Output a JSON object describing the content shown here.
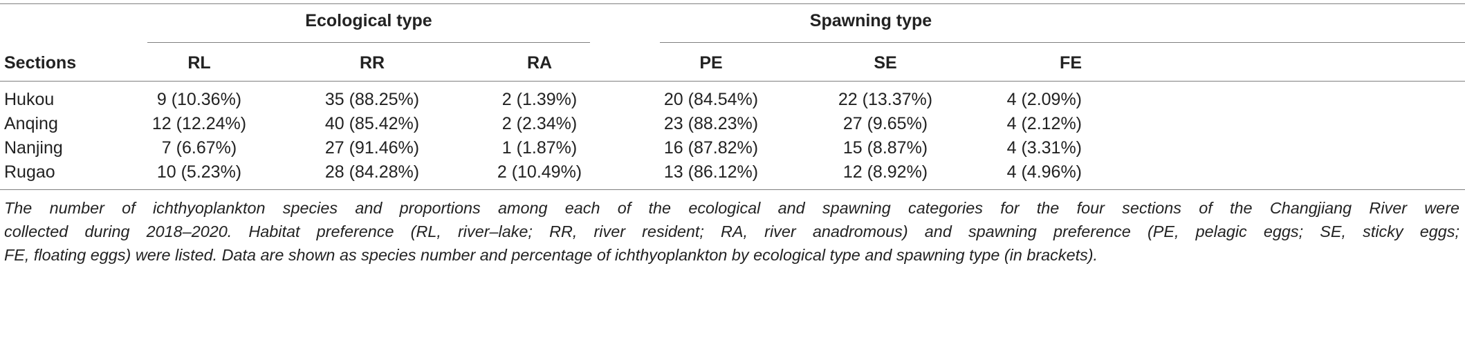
{
  "table": {
    "group_headers": {
      "ecological": "Ecological type",
      "spawning": "Spawning type"
    },
    "columns": [
      "Sections",
      "RL",
      "RR",
      "RA",
      "PE",
      "SE",
      "FE"
    ],
    "rows": [
      [
        "Hukou",
        "9 (10.36%)",
        "35 (88.25%)",
        "2 (1.39%)",
        "20 (84.54%)",
        "22 (13.37%)",
        "4 (2.09%)"
      ],
      [
        "Anqing",
        "12 (12.24%)",
        "40 (85.42%)",
        "2 (2.34%)",
        "23 (88.23%)",
        "27 (9.65%)",
        "4 (2.12%)"
      ],
      [
        "Nanjing",
        "7 (6.67%)",
        "27 (91.46%)",
        "1 (1.87%)",
        "16 (87.82%)",
        "15 (8.87%)",
        "4 (3.31%)"
      ],
      [
        "Rugao",
        "10 (5.23%)",
        "28 (84.28%)",
        "2 (10.49%)",
        "13 (86.12%)",
        "12 (8.92%)",
        "4 (4.96%)"
      ]
    ]
  },
  "caption": {
    "lines": [
      "The number of ichthyoplankton species and proportions among each of the ecological and spawning categories for the four sections of the Changjiang River were",
      "collected during 2018–2020. Habitat preference (RL, river–lake; RR, river resident; RA, river anadromous) and spawning preference (PE, pelagic eggs; SE, sticky eggs;",
      "FE, floating eggs) were listed. Data are shown as species number and percentage of ichthyoplankton by ecological type and spawning type (in brackets)."
    ]
  }
}
